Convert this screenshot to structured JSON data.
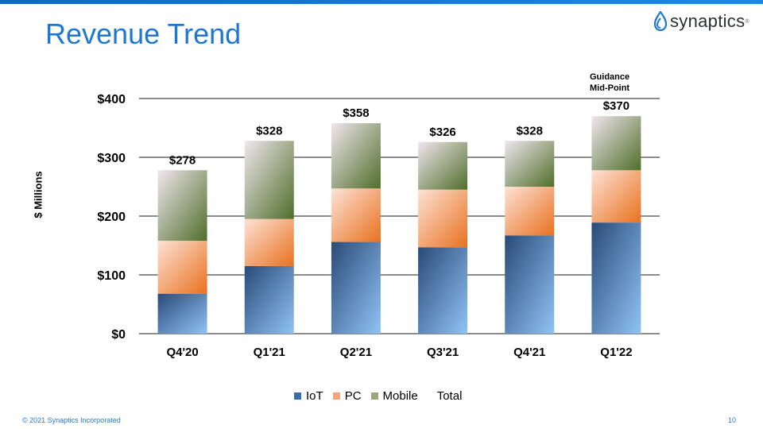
{
  "slide": {
    "title": "Revenue Trend",
    "logo_text": "synaptics",
    "logo_tm": "®",
    "footer_copyright": "© 2021 Synaptics Incorporated",
    "page_number": "10",
    "guidance_line1": "Guidance",
    "guidance_line2": "Mid-Point"
  },
  "colors": {
    "accent": "#1e78d2",
    "iot": "#3a6eaa",
    "pc": "#ed7d31",
    "mobile": "#6a8a45"
  },
  "chart_data": {
    "type": "bar",
    "stacked": true,
    "categories": [
      "Q4'20",
      "Q1'21",
      "Q2'21",
      "Q3'21",
      "Q4'21",
      "Q1'22"
    ],
    "series": [
      {
        "name": "IoT",
        "values": [
          68,
          115,
          156,
          147,
          167,
          189
        ]
      },
      {
        "name": "PC",
        "values": [
          90,
          80,
          91,
          98,
          83,
          89
        ]
      },
      {
        "name": "Mobile",
        "values": [
          120,
          133,
          111,
          81,
          78,
          92
        ]
      }
    ],
    "totals": [
      278,
      328,
      358,
      326,
      328,
      370
    ],
    "total_labels": [
      "$278",
      "$328",
      "$358",
      "$326",
      "$328",
      "$370"
    ],
    "legend": [
      "IoT",
      "PC",
      "Mobile",
      "Total"
    ],
    "legend_position": "bottom",
    "ylabel": "$ Millions",
    "ylim": [
      0,
      400
    ],
    "yticks": [
      0,
      100,
      200,
      300,
      400
    ],
    "ytick_labels": [
      "$0",
      "$100",
      "$200",
      "$300",
      "$400"
    ],
    "grid": true
  }
}
